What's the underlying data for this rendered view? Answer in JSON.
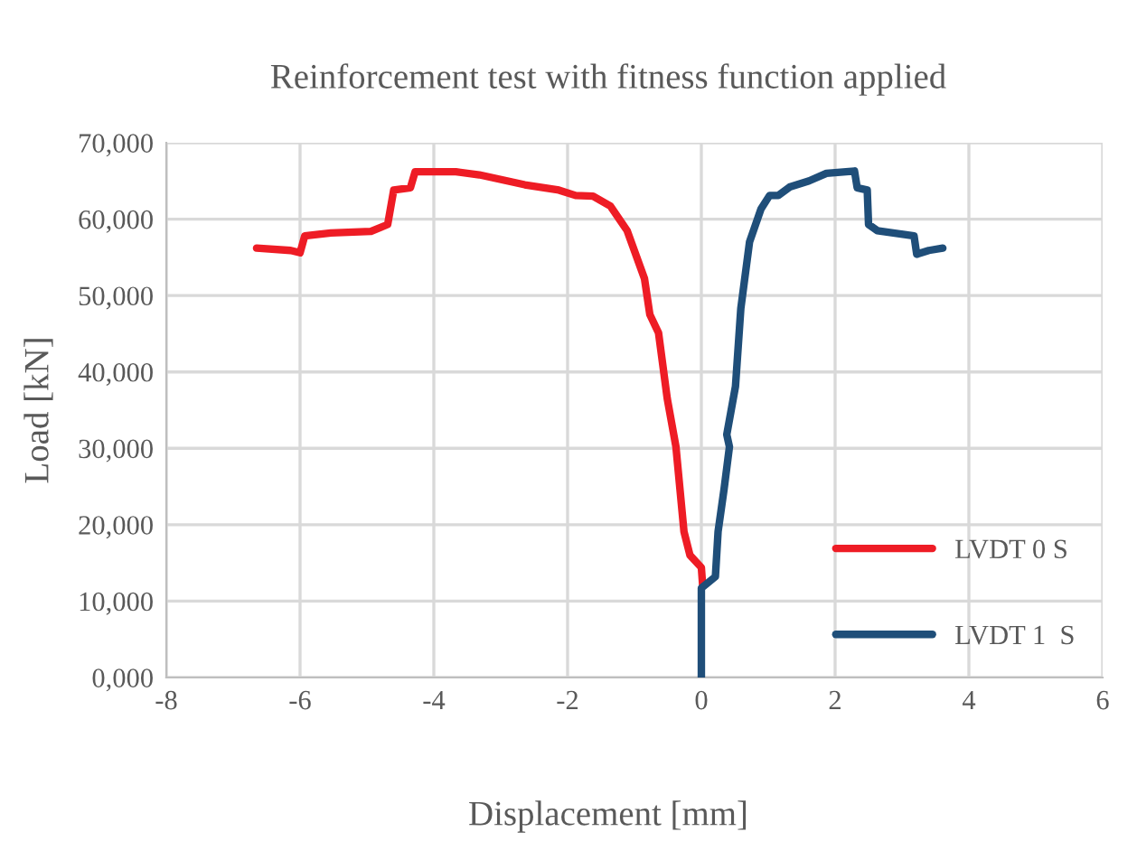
{
  "chart_data": {
    "type": "line",
    "title": "Reinforcement test with fitness function applied",
    "xlabel": "Displacement [mm]",
    "ylabel": "Load [kN]",
    "xlim": [
      -8,
      6
    ],
    "xticks": [
      -8,
      -6,
      -4,
      -2,
      0,
      2,
      4,
      6
    ],
    "ylim": [
      0,
      70000
    ],
    "yticks": [
      {
        "value": 0,
        "label": "0,000"
      },
      {
        "value": 10000,
        "label": "10,000"
      },
      {
        "value": 20000,
        "label": "20,000"
      },
      {
        "value": 30000,
        "label": "30,000"
      },
      {
        "value": 40000,
        "label": "40,000"
      },
      {
        "value": 50000,
        "label": "50,000"
      },
      {
        "value": 60000,
        "label": "60,000"
      },
      {
        "value": 70000,
        "label": "70,000"
      }
    ],
    "grid": true,
    "legend": "bottom right",
    "marker": "none",
    "line_style": "solid",
    "series": [
      {
        "name": "LVDT 0 S",
        "color": "#ee1c25",
        "x": [
          -6.65,
          -6.14,
          -6.0,
          -5.93,
          -5.54,
          -4.94,
          -4.69,
          -4.6,
          -4.35,
          -4.28,
          -3.67,
          -3.32,
          -2.64,
          -2.13,
          -1.88,
          -1.62,
          -1.36,
          -1.11,
          -0.85,
          -0.77,
          -0.64,
          -0.51,
          -0.38,
          -0.26,
          -0.17,
          0.0,
          0.02
        ],
        "values": [
          56200,
          55900,
          55600,
          57800,
          58200,
          58400,
          59300,
          63800,
          64100,
          66200,
          66200,
          65800,
          64500,
          63800,
          63100,
          63000,
          61700,
          58500,
          52200,
          47500,
          45100,
          36500,
          30200,
          19100,
          16000,
          14400,
          12000
        ]
      },
      {
        "name": "LVDT 1  S",
        "color": "#1f4e79",
        "x": [
          0,
          0,
          0.21,
          0.25,
          0.34,
          0.42,
          0.38,
          0.51,
          0.59,
          0.72,
          0.89,
          1.02,
          1.15,
          1.32,
          1.61,
          1.87,
          2.29,
          2.33,
          2.48,
          2.5,
          2.63,
          3.18,
          3.22,
          3.4,
          3.61
        ],
        "values": [
          0,
          11700,
          13200,
          19100,
          24700,
          30200,
          31800,
          38100,
          48300,
          57000,
          61300,
          63100,
          63100,
          64200,
          65000,
          66000,
          66300,
          64100,
          63800,
          59300,
          58500,
          57800,
          55400,
          55900,
          56200
        ]
      }
    ]
  }
}
